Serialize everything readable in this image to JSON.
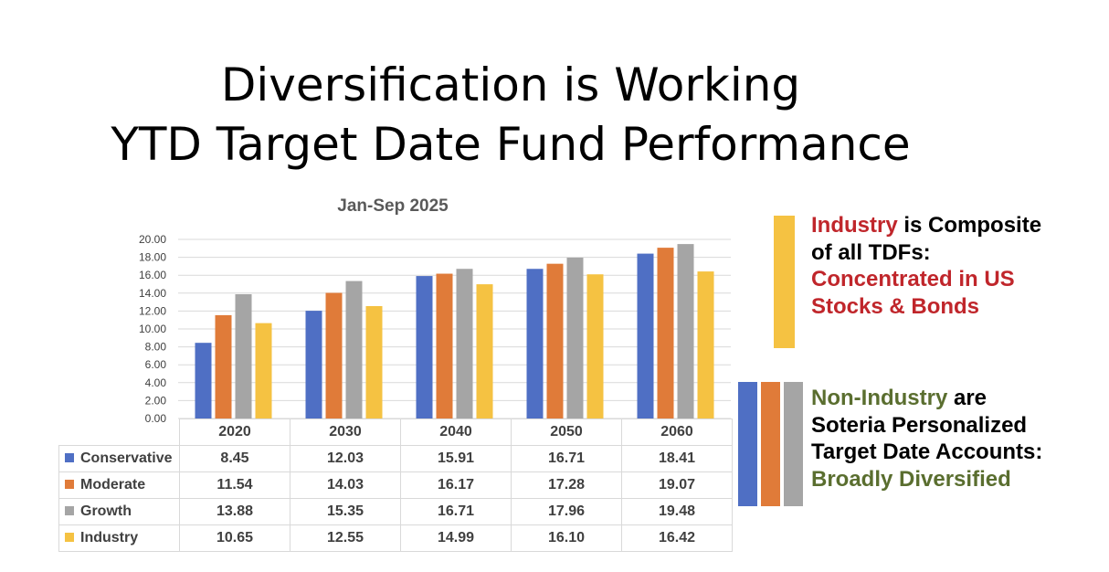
{
  "slide": {
    "title_line1": "Diversification is Working",
    "title_line2": "YTD Target Date Fund Performance"
  },
  "callouts": {
    "industry": {
      "word": "Industry",
      "rest1": " is Composite",
      "line2": "of all TDFs:",
      "line3": "Concentrated in US",
      "line4": "Stocks & Bonds",
      "bar_color": "#f5c242"
    },
    "non_industry": {
      "word": "Non-Industry",
      "rest1": " are",
      "line2": "Soteria Personalized",
      "line3": "Target Date Accounts:",
      "line4": "Broadly Diversified",
      "bar_colors": [
        "#4f6fc4",
        "#e07b39",
        "#a5a5a5"
      ]
    }
  },
  "chart_data": {
    "type": "bar",
    "title": "Jan-Sep 2025",
    "categories": [
      "2020",
      "2030",
      "2040",
      "2050",
      "2060"
    ],
    "series": [
      {
        "name": "Conservative",
        "color": "#4f6fc4",
        "values": [
          8.45,
          12.03,
          15.91,
          16.71,
          18.41
        ],
        "labels": [
          "8.45",
          "12.03",
          "15.91",
          "16.71",
          "18.41"
        ]
      },
      {
        "name": "Moderate",
        "color": "#e07b39",
        "values": [
          11.54,
          14.03,
          16.17,
          17.28,
          19.07
        ],
        "labels": [
          "11.54",
          "14.03",
          "16.17",
          "17.28",
          "19.07"
        ]
      },
      {
        "name": "Growth",
        "color": "#a5a5a5",
        "values": [
          13.88,
          15.35,
          16.71,
          17.96,
          19.48
        ],
        "labels": [
          "13.88",
          "15.35",
          "16.71",
          "17.96",
          "19.48"
        ]
      },
      {
        "name": "Industry",
        "color": "#f5c242",
        "values": [
          10.65,
          12.55,
          14.99,
          16.1,
          16.42
        ],
        "labels": [
          "10.65",
          "12.55",
          "14.99",
          "16.10",
          "16.42"
        ]
      }
    ],
    "ylim": [
      0,
      20
    ],
    "yticks": [
      "0.00",
      "2.00",
      "4.00",
      "6.00",
      "8.00",
      "10.00",
      "12.00",
      "14.00",
      "16.00",
      "18.00",
      "20.00"
    ],
    "grid": true,
    "legend": "data-table"
  }
}
